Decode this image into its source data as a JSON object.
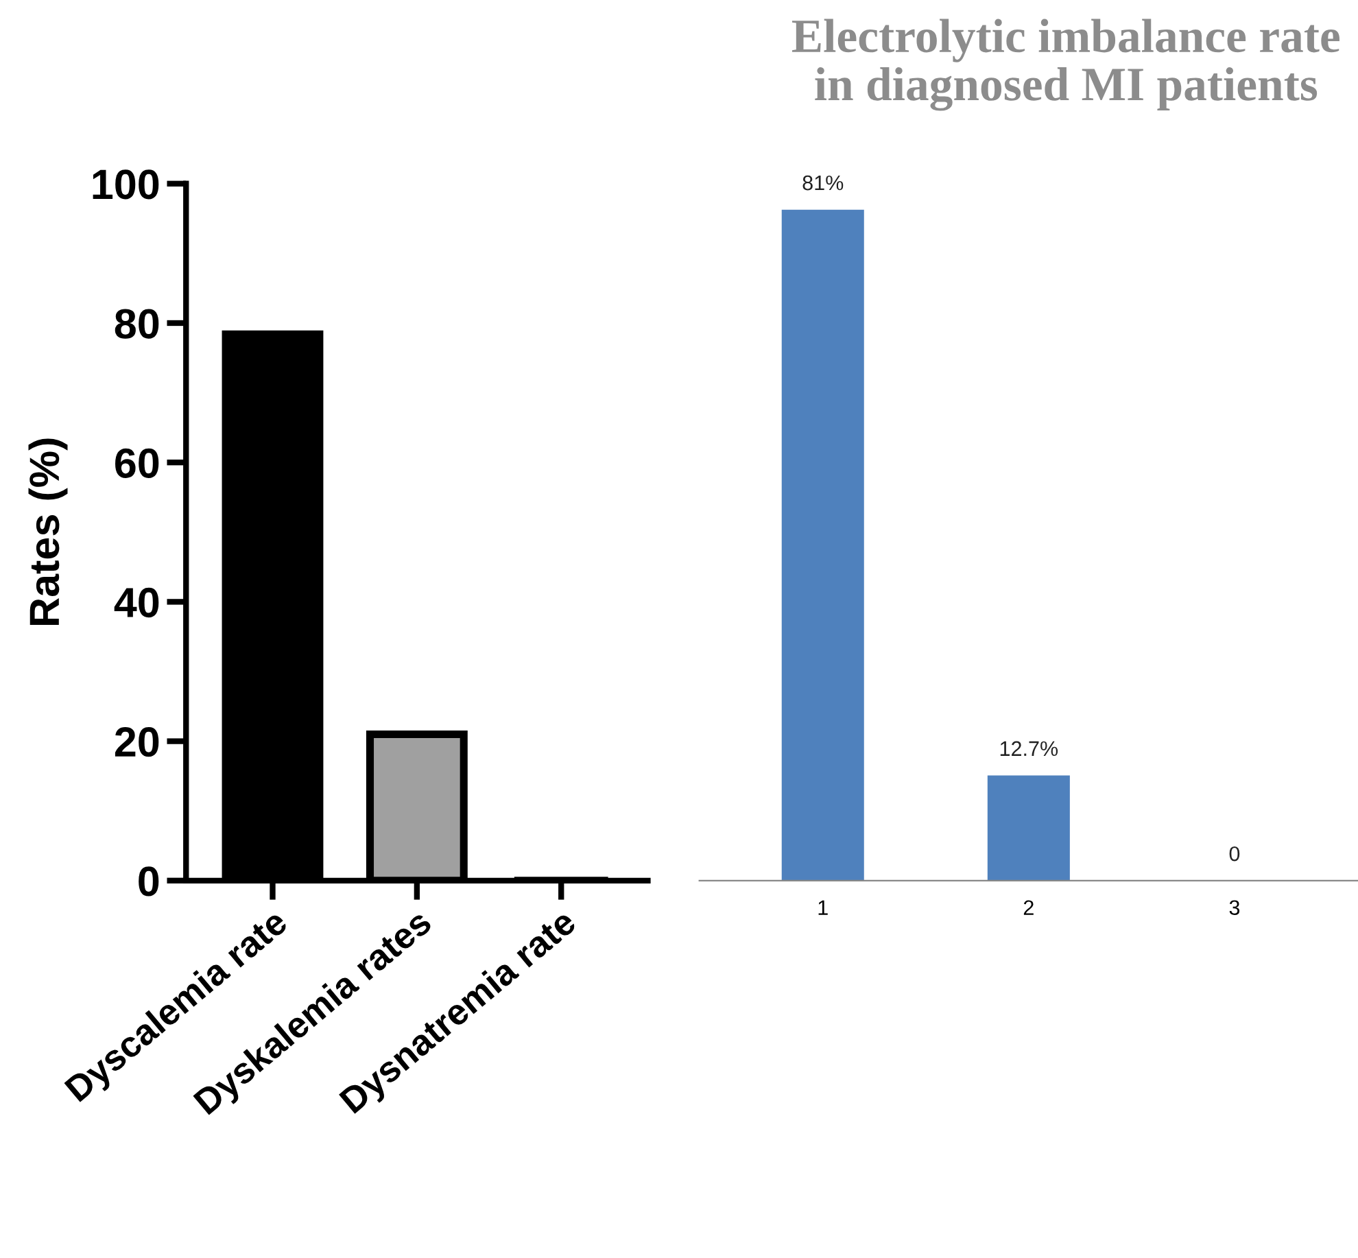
{
  "chart_data": [
    {
      "type": "bar",
      "ylabel": "Rates (%)",
      "categories": [
        "Dyscalemia rate",
        "Dyskalemia rates",
        "Dysnatremia rate"
      ],
      "values": [
        78.4,
        21,
        0
      ],
      "colors": [
        "#000000",
        "#a0a0a0",
        "#000000"
      ],
      "ylim": [
        0,
        100
      ],
      "yticks": [
        0,
        20,
        40,
        60,
        80,
        100
      ],
      "grid": false,
      "legend": false
    },
    {
      "type": "bar",
      "title": "Electrolytic imbalance rate in diagnosed MI patients",
      "categories": [
        "1",
        "2",
        "3"
      ],
      "values": [
        81,
        12.7,
        0
      ],
      "value_labels": [
        "81%",
        "12.7%",
        "0"
      ],
      "color": "#4f81bd",
      "tick_labels": "x",
      "grid": false,
      "legend": false
    }
  ]
}
